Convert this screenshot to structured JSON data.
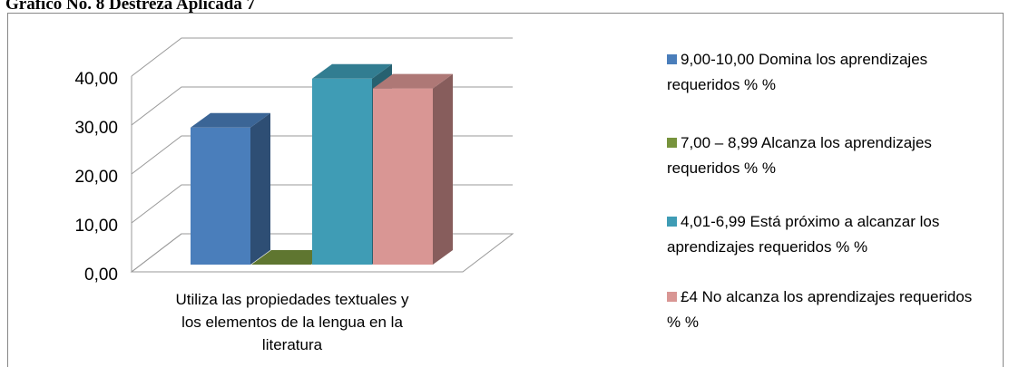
{
  "chart_data": {
    "type": "bar3d",
    "title": "Gráfico No. 8 Destreza Aplicada 7",
    "categories": [
      "Utiliza las propiedades textuales y los elementos de la lengua en la literatura"
    ],
    "series": [
      {
        "name": "9,00-10,00 Domina los aprendizajes requeridos % %",
        "color": "#4a7ebb",
        "values": [
          28
        ]
      },
      {
        "name": "7,00 – 8,99 Alcanza los aprendizajes requeridos % %",
        "color": "#77933c",
        "values": [
          0
        ]
      },
      {
        "name": "4,01-6,99 Está próximo a alcanzar los aprendizajes requeridos % %",
        "color": "#3f9cb5",
        "values": [
          38
        ]
      },
      {
        "name": "£4 No alcanza los aprendizajes requeridos % %",
        "color": "#d99694",
        "values": [
          36
        ]
      }
    ],
    "ylim": [
      0,
      40
    ],
    "yticks": [
      {
        "value": 0,
        "label": "0,00"
      },
      {
        "value": 10,
        "label": "10,00"
      },
      {
        "value": 20,
        "label": "20,00"
      },
      {
        "value": 30,
        "label": "30,00"
      },
      {
        "value": 40,
        "label": "40,00"
      }
    ],
    "grid": true,
    "legend": "right"
  }
}
